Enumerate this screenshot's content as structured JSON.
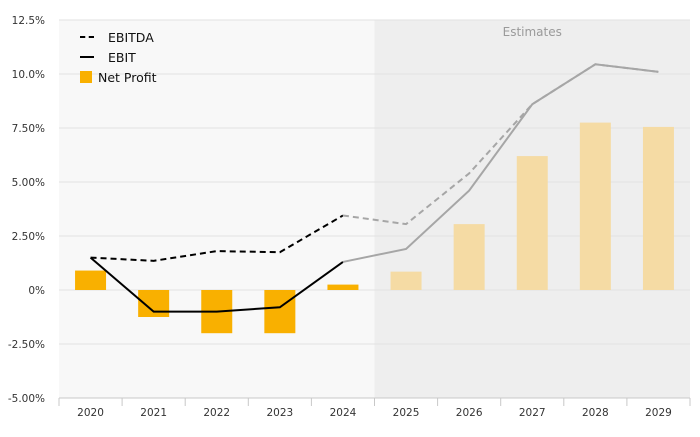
{
  "chart_data": {
    "type": "bar",
    "categories": [
      "2020",
      "2021",
      "2022",
      "2023",
      "2024",
      "2025",
      "2026",
      "2027",
      "2028",
      "2029"
    ],
    "series": [
      {
        "name": "EBITDA",
        "kind": "line",
        "style": "dashed",
        "values": [
          1.5,
          1.35,
          1.8,
          1.75,
          3.45,
          3.05,
          5.4,
          8.6,
          10.45,
          10.1
        ]
      },
      {
        "name": "EBIT",
        "kind": "line",
        "style": "solid",
        "values": [
          1.5,
          -1.0,
          -1.0,
          -0.8,
          1.3,
          1.9,
          4.6,
          8.6,
          10.45,
          10.1
        ]
      },
      {
        "name": "Net Profit",
        "kind": "bar",
        "values": [
          0.9,
          -1.25,
          -2.0,
          -2.0,
          0.25,
          0.85,
          3.05,
          6.2,
          7.75,
          7.55
        ]
      }
    ],
    "yticks": [
      "12.5%",
      "10.0%",
      "7.50%",
      "5.00%",
      "2.50%",
      "0%",
      "-2.50%",
      "-5.00%"
    ],
    "ylim": [
      -5.0,
      12.5
    ],
    "estimates_from": "2025",
    "annotation": "Estimates",
    "legend_position": "top-left",
    "colors": {
      "bar": "#f9b000",
      "bar_estimate": "#f5dba4",
      "line": "#000000",
      "line_estimate": "#a6a6a6",
      "estimate_bg": "#eeeeee",
      "plot_bg": "#f8f8f8",
      "grid": "#e2e2e2"
    }
  }
}
